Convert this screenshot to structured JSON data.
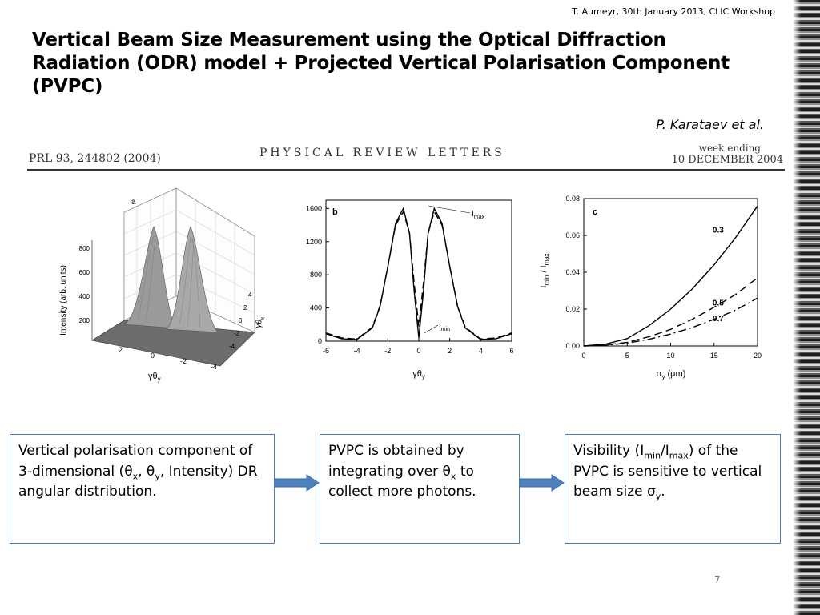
{
  "header": {
    "author_line": "T. Aumeyr, 30th January 2013, CLIC Workshop"
  },
  "title": "Vertical Beam Size Measurement using the Optical Diffraction Radiation (ODR)  model + Projected Vertical Polarisation Component (PVPC)",
  "citation": "P. Karataev et al.",
  "journal": {
    "ref": "PRL 93, 244802 (2004)",
    "name": "PHYSICAL  REVIEW  LETTERS",
    "week_label": "week ending",
    "date": "10 DECEMBER 2004"
  },
  "colors": {
    "box_border": "#4a7ebb",
    "arrow": "#4f81bd"
  },
  "panel_a": {
    "letter": "a",
    "zlabel": "Intensity (arb. units)",
    "z_ticks": [
      "200",
      "400",
      "600",
      "800"
    ],
    "xlabel_main": "γθ",
    "xlabel_sub": "y",
    "x_ticks": [
      "2",
      "0",
      "-2",
      "-4"
    ],
    "ylabel_main": "γθ",
    "ylabel_sub": "x",
    "y_ticks": [
      "4",
      "2",
      "0",
      "-2",
      "-4"
    ]
  },
  "chart_data": [
    {
      "type": "line",
      "panel": "b",
      "xlabel": "γθy",
      "xlim": [
        -6,
        6
      ],
      "ylim": [
        0,
        1700
      ],
      "xticks": [
        "-6",
        "-4",
        "-2",
        "0",
        "2",
        "4",
        "6"
      ],
      "yticks": [
        "0",
        "400",
        "800",
        "1200",
        "1600"
      ],
      "annotations": [
        "Imax",
        "Imin"
      ],
      "x": [
        -6,
        -5,
        -4,
        -3,
        -2.5,
        -2,
        -1.5,
        -1,
        -0.6,
        -0.3,
        0,
        0.3,
        0.6,
        1,
        1.5,
        2,
        2.5,
        3,
        4,
        5,
        6
      ],
      "series": [
        {
          "values": [
            90,
            30,
            20,
            160,
            420,
            900,
            1420,
            1600,
            1300,
            600,
            40,
            600,
            1300,
            1600,
            1420,
            900,
            420,
            160,
            20,
            30,
            90
          ]
        },
        {
          "values": [
            100,
            40,
            25,
            170,
            430,
            900,
            1400,
            1560,
            1300,
            700,
            180,
            700,
            1300,
            1560,
            1400,
            900,
            430,
            170,
            25,
            40,
            100
          ]
        }
      ]
    },
    {
      "type": "line",
      "panel": "c",
      "xlabel": "σy (μm)",
      "ylabel": "Imin / Imax",
      "xlim": [
        0,
        20
      ],
      "ylim": [
        0,
        0.08
      ],
      "xticks": [
        "0",
        "5",
        "10",
        "15",
        "20"
      ],
      "yticks": [
        "0.00",
        "0.02",
        "0.04",
        "0.06",
        "0.08"
      ],
      "x": [
        0,
        2.5,
        5,
        7.5,
        10,
        12.5,
        15,
        17.5,
        20
      ],
      "series": [
        {
          "name": "0.3",
          "values": [
            0,
            0.001,
            0.004,
            0.011,
            0.02,
            0.031,
            0.044,
            0.059,
            0.076
          ]
        },
        {
          "name": "0.5",
          "values": [
            0,
            0.0005,
            0.002,
            0.005,
            0.009,
            0.0145,
            0.021,
            0.028,
            0.037
          ]
        },
        {
          "name": "0.7",
          "values": [
            0,
            0.0004,
            0.0016,
            0.0036,
            0.0065,
            0.01,
            0.0145,
            0.0195,
            0.026
          ]
        }
      ]
    }
  ],
  "boxes": {
    "box1": {
      "text1": "Vertical polarisation component of 3-dimensional (θ",
      "sub1": "x",
      "text2": ", θ",
      "sub2": "y",
      "text3": ", Intensity)  DR angular distribution."
    },
    "box2": {
      "text1": "PVPC is obtained by integrating over θ",
      "sub1": "x",
      "text2": " to collect more photons."
    },
    "box3": {
      "text1": "Visibility (I",
      "sub1": "min",
      "text2": "/I",
      "sub2": "max",
      "text3": ") of the PVPC is sensitive to vertical beam size σ",
      "sub3": "y",
      "text4": "."
    }
  },
  "page_number": "7"
}
